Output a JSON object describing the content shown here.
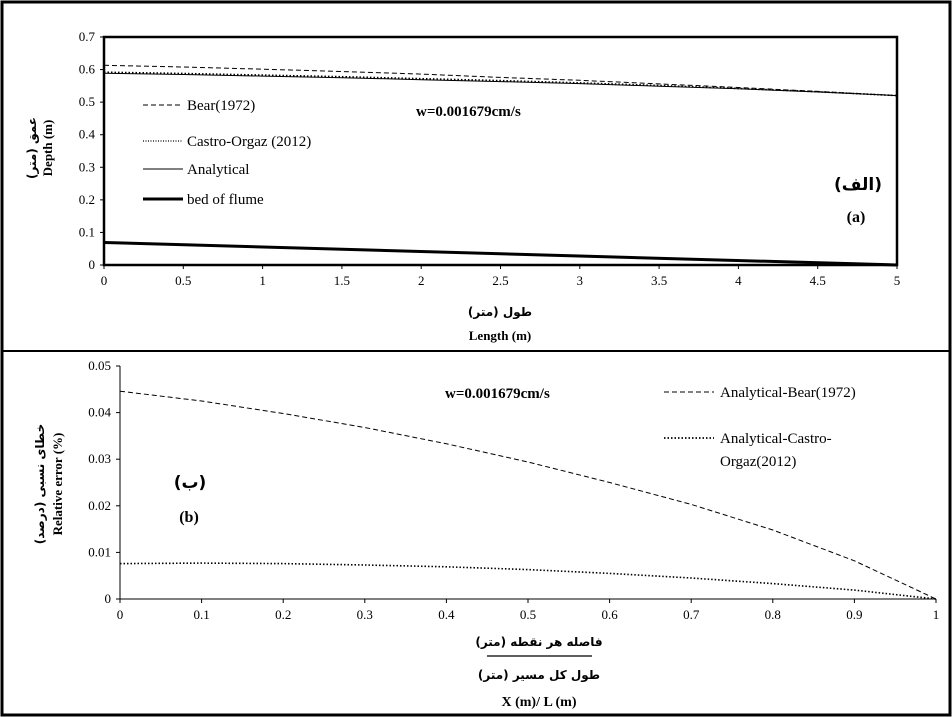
{
  "chart_data": [
    {
      "id": "a",
      "type": "line",
      "panel_label": "(a)",
      "panel_label_ar": "(الف)",
      "annotation": "w=0.001679cm/s",
      "xlabel": "Length (m)",
      "xlabel_ar": "طول (متر)",
      "ylabel": "Depth (m)",
      "ylabel_ar": "عمق (متر)",
      "xlim": [
        0,
        5
      ],
      "ylim": [
        0,
        0.7
      ],
      "xticks": [
        0,
        0.5,
        1,
        1.5,
        2,
        2.5,
        3,
        3.5,
        4,
        4.5,
        5
      ],
      "xtick_labels": [
        "0",
        "0.5",
        "1",
        "1.5",
        "2",
        "2.5",
        "3",
        "3.5",
        "4",
        "4.5",
        "5"
      ],
      "yticks": [
        0,
        0.1,
        0.2,
        0.3,
        0.4,
        0.5,
        0.6,
        0.7
      ],
      "ytick_labels": [
        "0",
        "0.1",
        "0.2",
        "0.3",
        "0.4",
        "0.5",
        "0.6",
        "0.7"
      ],
      "grid": false,
      "legend_position": "left",
      "series": [
        {
          "name": "Bear(1972)",
          "style": "dashed",
          "x": [
            0,
            0.5,
            1,
            1.5,
            2,
            2.5,
            3,
            3.5,
            4,
            4.5,
            5
          ],
          "y": [
            0.613,
            0.608,
            0.601,
            0.594,
            0.586,
            0.576,
            0.567,
            0.556,
            0.545,
            0.533,
            0.52
          ]
        },
        {
          "name": "Castro-Orgaz (2012)",
          "style": "dotted",
          "x": [
            0,
            0.5,
            1,
            1.5,
            2,
            2.5,
            3,
            3.5,
            4,
            4.5,
            5
          ],
          "y": [
            0.592,
            0.588,
            0.583,
            0.578,
            0.572,
            0.566,
            0.559,
            0.551,
            0.542,
            0.532,
            0.52
          ]
        },
        {
          "name": "Analytical",
          "style": "solid",
          "x": [
            0,
            0.5,
            1,
            1.5,
            2,
            2.5,
            3,
            3.5,
            4,
            4.5,
            5
          ],
          "y": [
            0.589,
            0.585,
            0.58,
            0.575,
            0.569,
            0.563,
            0.557,
            0.549,
            0.541,
            0.531,
            0.52
          ]
        },
        {
          "name": "bed of flume",
          "style": "bold",
          "x": [
            0,
            5
          ],
          "y": [
            0.069,
            0.0
          ]
        }
      ]
    },
    {
      "id": "b",
      "type": "line",
      "panel_label": "(b)",
      "panel_label_ar": "(ب)",
      "annotation": "w=0.001679cm/s",
      "xlabel": "X (m)/ L (m)",
      "xlabel_ar_numerator": "فاصله هر نقطه (متر)",
      "xlabel_ar_denominator": "طول کل مسیر (متر)",
      "ylabel": "Relative error (%)",
      "ylabel_ar": "خطای نسبی (درصد)",
      "xlim": [
        0,
        1
      ],
      "ylim": [
        0,
        0.05
      ],
      "xticks": [
        0,
        0.1,
        0.2,
        0.3,
        0.4,
        0.5,
        0.6,
        0.7,
        0.8,
        0.9,
        1
      ],
      "xtick_labels": [
        "0",
        "0.1",
        "0.2",
        "0.3",
        "0.4",
        "0.5",
        "0.6",
        "0.7",
        "0.8",
        "0.9",
        "1"
      ],
      "yticks": [
        0,
        0.01,
        0.02,
        0.03,
        0.04,
        0.05
      ],
      "ytick_labels": [
        "0",
        "0.01",
        "0.02",
        "0.03",
        "0.04",
        "0.05"
      ],
      "grid": false,
      "legend_position": "top-right",
      "series": [
        {
          "name": "Analytical-Bear(1972)",
          "style": "dashed",
          "x": [
            0,
            0.1,
            0.2,
            0.3,
            0.4,
            0.5,
            0.6,
            0.7,
            0.8,
            0.9,
            1
          ],
          "y": [
            0.0446,
            0.0425,
            0.0398,
            0.0368,
            0.0333,
            0.0294,
            0.025,
            0.0203,
            0.0148,
            0.0082,
            0.0
          ]
        },
        {
          "name_lines": [
            "Analytical-Castro-",
            "Orgaz(2012)"
          ],
          "style": "dotted",
          "x": [
            0,
            0.1,
            0.2,
            0.3,
            0.4,
            0.5,
            0.6,
            0.7,
            0.8,
            0.9,
            1
          ],
          "y": [
            0.0076,
            0.0077,
            0.0076,
            0.0073,
            0.0069,
            0.0063,
            0.0055,
            0.0045,
            0.0033,
            0.0019,
            0.0
          ]
        }
      ]
    }
  ]
}
